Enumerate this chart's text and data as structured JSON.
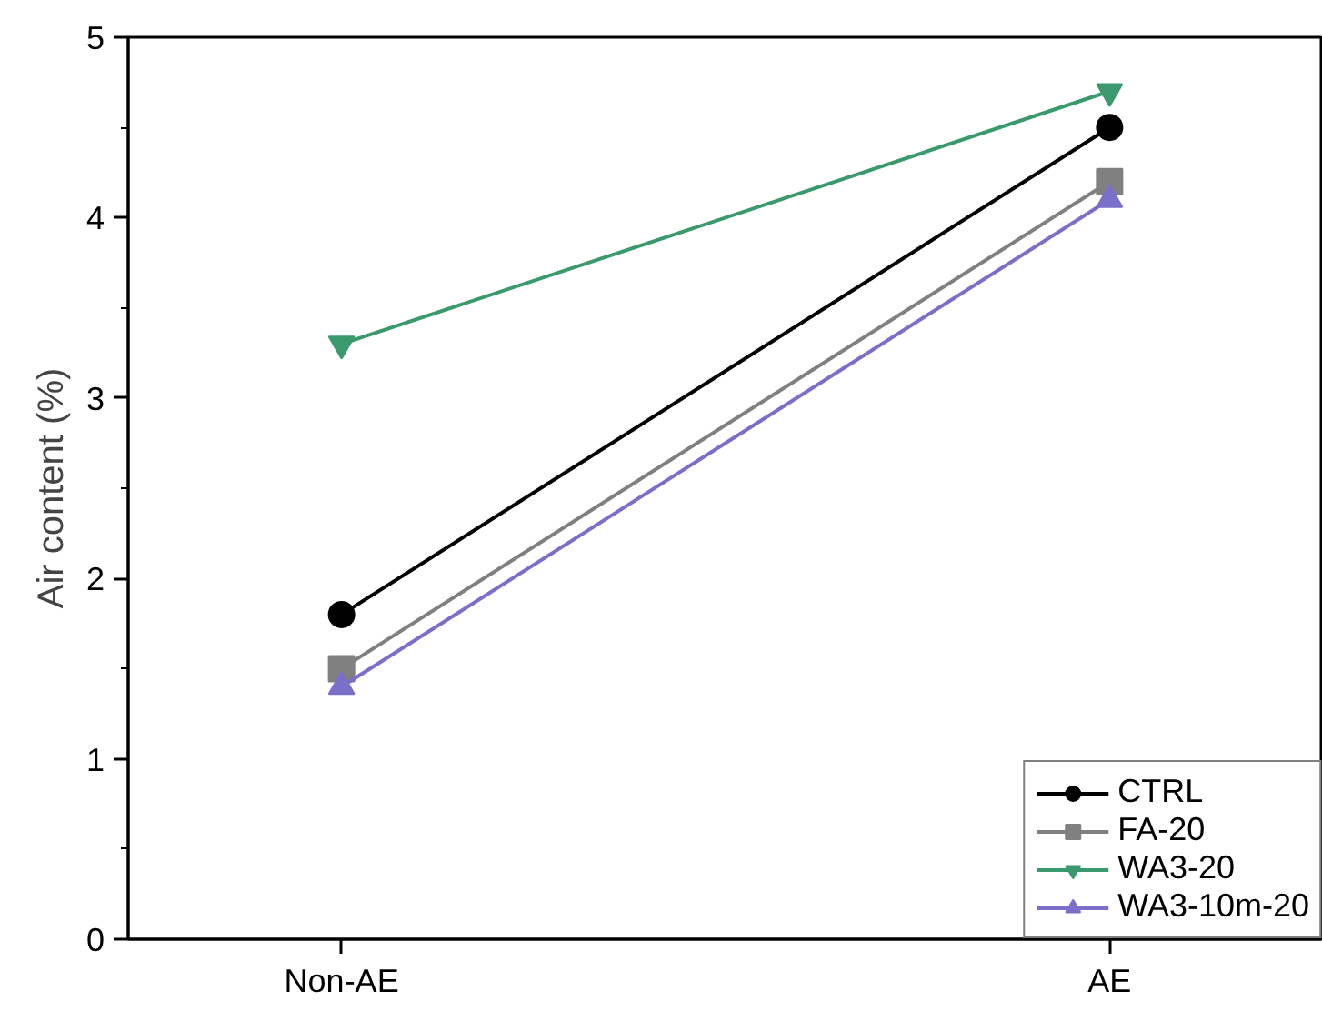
{
  "chart_data": {
    "type": "line",
    "ylabel": "Air content (%)",
    "categories": [
      "Non-AE",
      "AE"
    ],
    "series": [
      {
        "name": "CTRL",
        "color": "#000000",
        "marker": "circle",
        "values": [
          1.8,
          4.5
        ]
      },
      {
        "name": "FA-20",
        "color": "#808080",
        "marker": "square",
        "values": [
          1.5,
          4.2
        ]
      },
      {
        "name": "WA3-20",
        "color": "#3a9a6e",
        "marker": "triangle_down",
        "values": [
          3.3,
          4.7
        ]
      },
      {
        "name": "WA3-10m-20",
        "color": "#7b6fc9",
        "marker": "triangle",
        "values": [
          1.4,
          4.1
        ]
      }
    ],
    "ylim": [
      0,
      5
    ],
    "yticks": [
      0,
      1,
      2,
      3,
      4,
      5
    ],
    "grid": false,
    "legend": "bottom right",
    "line_style": "solid"
  }
}
